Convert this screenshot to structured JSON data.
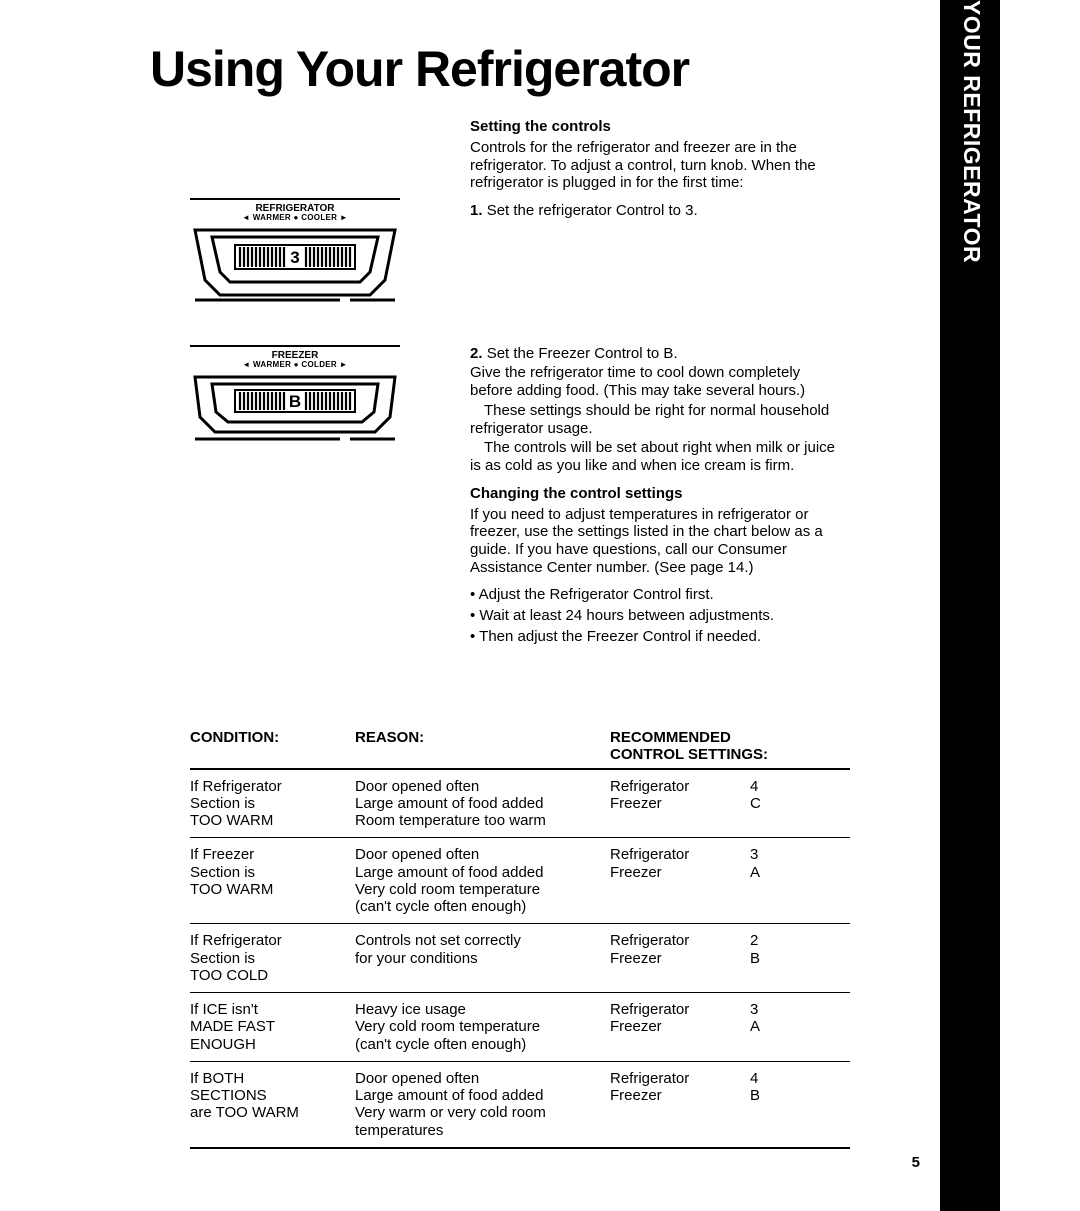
{
  "title": "Using Your Refrigerator",
  "sidebar": "BEFORE USING YOUR REFRIGERATOR • USING YOUR REFRIGERATOR",
  "page_number": "5",
  "dials": {
    "fridge": {
      "label": "REFRIGERATOR",
      "sub": "◄ WARMER ● COOLER ►",
      "value": "3"
    },
    "freezer": {
      "label": "FREEZER",
      "sub": "◄ WARMER ● COLDER ►",
      "value": "B"
    }
  },
  "setting": {
    "heading": "Setting the controls",
    "intro": "Controls for the refrigerator and freezer are in the refrigerator. To adjust a control, turn knob. When the refrigerator is plugged in for the first time:",
    "step1_num": "1.",
    "step1": "Set the refrigerator Control to 3.",
    "step2_num": "2.",
    "step2": "Set the Freezer Control to B.",
    "step2_body1": "Give the refrigerator time to cool down completely before adding food. (This may take several hours.)",
    "step2_body2": "These settings should be right for normal household refrigerator usage.",
    "step2_body3": "The controls will be set about right when milk or juice is as cold as you like and when ice cream is firm."
  },
  "changing": {
    "heading": "Changing the control settings",
    "intro": "If you need to adjust temperatures in refrigerator or freezer, use the settings listed in the chart below as a guide. If you have questions, call our Consumer Assistance Center number. (See page 14.)",
    "b1": "Adjust the Refrigerator Control first.",
    "b2": "Wait at least 24 hours between adjustments.",
    "b3": "Then adjust the Freezer Control if needed."
  },
  "table": {
    "h1": "CONDITION:",
    "h2": "REASON:",
    "h3a": "RECOMMENDED",
    "h3b": "CONTROL SETTINGS:",
    "rows": [
      {
        "cond_l1": "If Refrigerator",
        "cond_l2": "Section is",
        "cond_l3": "TOO WARM",
        "reason_l1": "Door opened often",
        "reason_l2": "Large amount of food added",
        "reason_l3": "Room temperature too warm",
        "reason_l4": "",
        "s1a": "Refrigerator",
        "s1b": "4",
        "s2a": "Freezer",
        "s2b": "C"
      },
      {
        "cond_l1": "If Freezer",
        "cond_l2": "Section is",
        "cond_l3": "TOO WARM",
        "reason_l1": "Door opened often",
        "reason_l2": "Large amount of food added",
        "reason_l3": "Very cold room temperature",
        "reason_l4": "(can't cycle often enough)",
        "s1a": "Refrigerator",
        "s1b": "3",
        "s2a": "Freezer",
        "s2b": "A"
      },
      {
        "cond_l1": "If Refrigerator",
        "cond_l2": "Section is",
        "cond_l3": "TOO COLD",
        "reason_l1": "Controls not set correctly",
        "reason_l2": "for your conditions",
        "reason_l3": "",
        "reason_l4": "",
        "s1a": "Refrigerator",
        "s1b": "2",
        "s2a": "Freezer",
        "s2b": "B"
      },
      {
        "cond_l1": "If ICE isn't",
        "cond_l2": "MADE FAST",
        "cond_l3": "ENOUGH",
        "reason_l1": "Heavy ice usage",
        "reason_l2": "Very cold room temperature",
        "reason_l3": "(can't cycle often enough)",
        "reason_l4": "",
        "s1a": "Refrigerator",
        "s1b": "3",
        "s2a": "Freezer",
        "s2b": "A"
      },
      {
        "cond_l1": "If BOTH",
        "cond_l2": "SECTIONS",
        "cond_l3": "are TOO WARM",
        "reason_l1": "Door opened often",
        "reason_l2": "Large amount of food added",
        "reason_l3": "Very warm or very cold room",
        "reason_l4": "temperatures",
        "s1a": "Refrigerator",
        "s1b": "4",
        "s2a": "Freezer",
        "s2b": "B"
      }
    ]
  }
}
